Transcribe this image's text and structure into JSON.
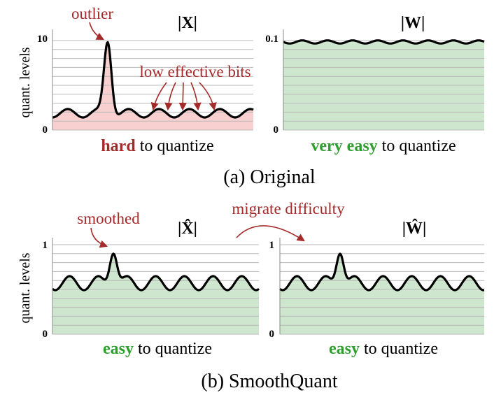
{
  "colors": {
    "red_fill": "#f8d0d0",
    "green_fill": "#cde6cd",
    "curve": "#000000",
    "annotation": "#a52a2a",
    "easy_green": "#2e9e2e",
    "hard_red": "#a52a2a",
    "grid": "#b8b8b8"
  },
  "shared": {
    "y_axis_label": "quant. levels"
  },
  "original": {
    "caption": "(a) Original",
    "x_panel": {
      "title": "|X|",
      "y_top": "10",
      "y_bottom": "0",
      "outlier_label": "outlier",
      "bits_label": "low effective bits",
      "difficulty_bold": "hard",
      "difficulty_rest": " to quantize",
      "fill": "red"
    },
    "w_panel": {
      "title": "|W|",
      "y_top": "0.1",
      "y_bottom": "0",
      "difficulty_bold": "very easy",
      "difficulty_rest": " to quantize",
      "fill": "green"
    }
  },
  "smoothquant": {
    "caption": "(b) SmoothQuant",
    "migrate_label": "migrate difficulty",
    "x_panel": {
      "title": "|X̂|",
      "y_top": "1",
      "y_bottom": "0",
      "smoothed_label": "smoothed",
      "difficulty_bold": "easy",
      "difficulty_rest": " to quantize",
      "fill": "green"
    },
    "w_panel": {
      "title": "|Ŵ|",
      "y_top": "1",
      "y_bottom": "0",
      "difficulty_bold": "easy",
      "difficulty_rest": " to quantize",
      "fill": "green"
    }
  }
}
